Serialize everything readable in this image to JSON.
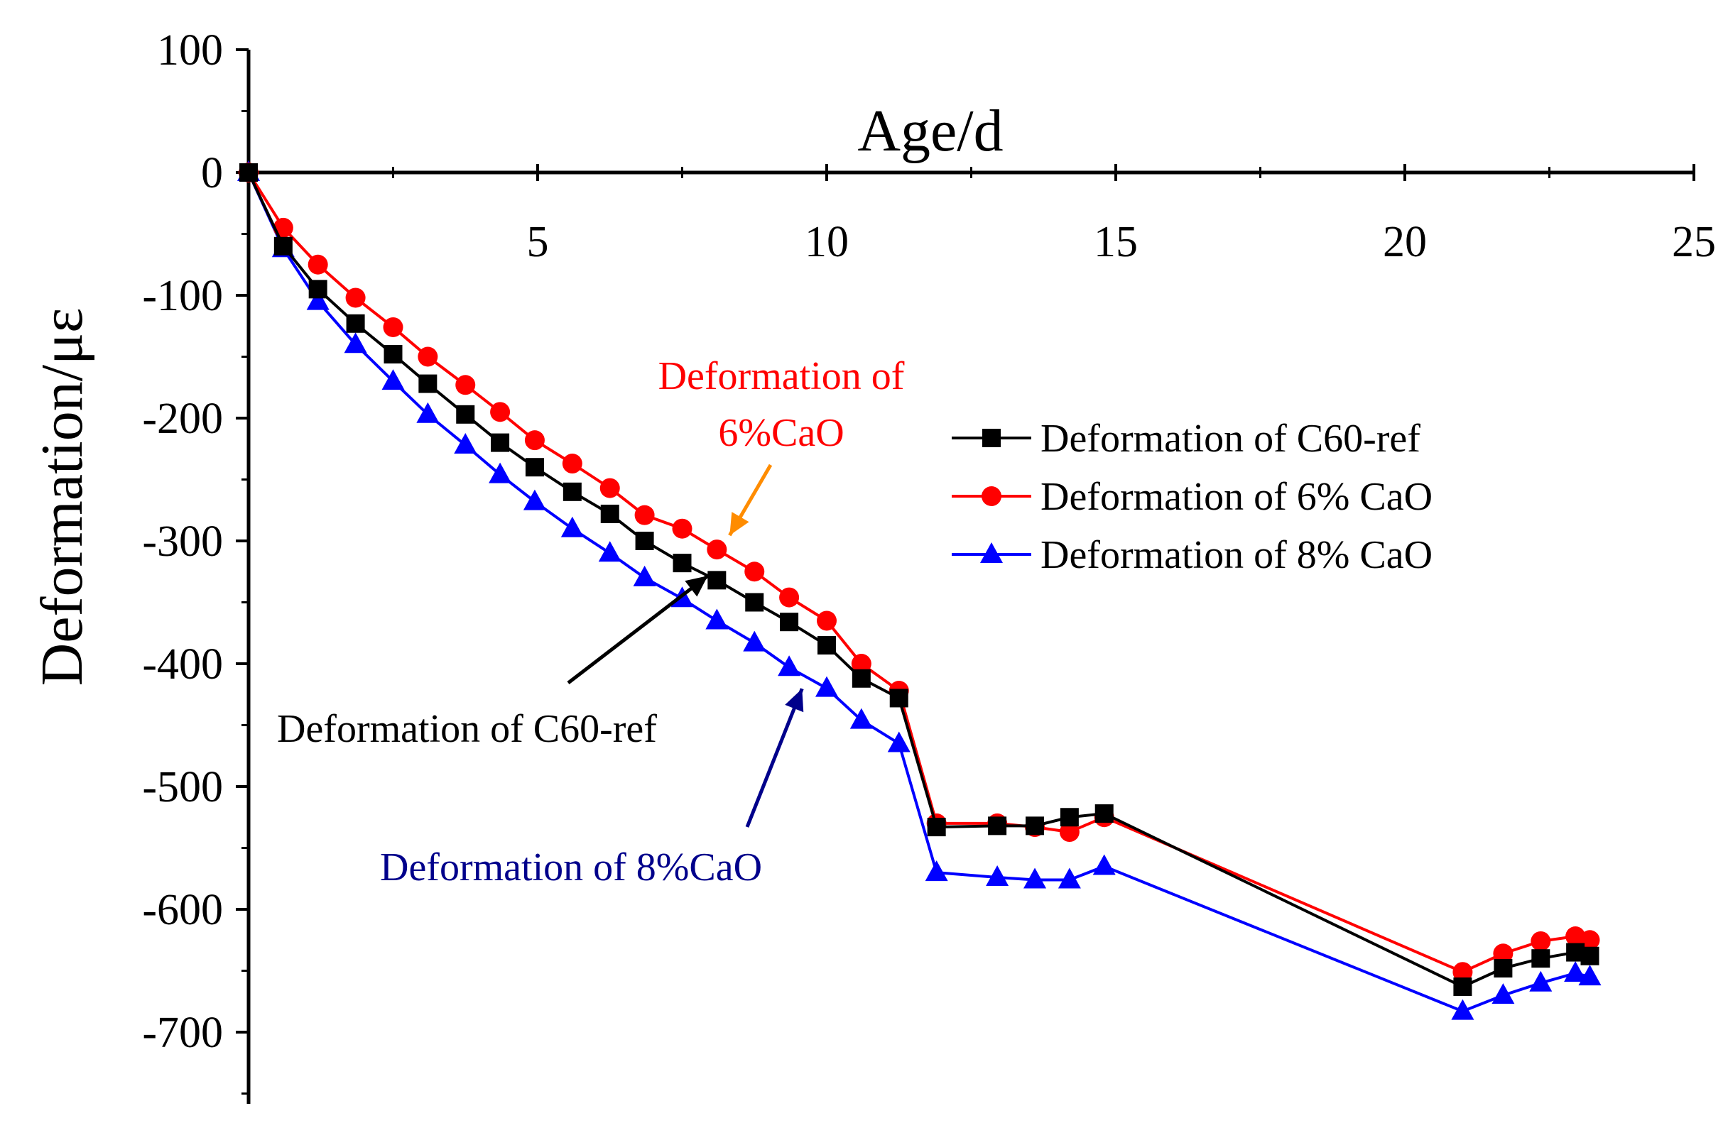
{
  "chart_data": {
    "type": "line",
    "title": "",
    "xlabel": "Age/d",
    "ylabel": "Deformation/με",
    "xlim": [
      0,
      25
    ],
    "ylim": [
      -750,
      100
    ],
    "xticks": [
      "5",
      "10",
      "15",
      "20",
      "25"
    ],
    "yticks": [
      "100",
      "0",
      "-100",
      "-200",
      "-300",
      "-400",
      "-500",
      "-600",
      "-700"
    ],
    "xtick_values": [
      5,
      10,
      15,
      20,
      25
    ],
    "ytick_values": [
      100,
      0,
      -100,
      -200,
      -300,
      -400,
      -500,
      -600,
      -700
    ],
    "legend_position": "right",
    "series": [
      {
        "name": "Deformation of C60-ref",
        "color": "#000000",
        "marker": "square",
        "x": [
          0,
          0.6,
          1.2,
          1.85,
          2.5,
          3.1,
          3.75,
          4.35,
          4.95,
          5.6,
          6.25,
          6.85,
          7.5,
          8.1,
          8.75,
          9.35,
          10.0,
          10.6,
          11.25,
          11.9,
          12.95,
          13.6,
          14.2,
          14.8,
          21.0,
          21.7,
          22.35,
          22.95,
          23.2
        ],
        "y": [
          0,
          -60,
          -95,
          -123,
          -148,
          -172,
          -197,
          -220,
          -240,
          -260,
          -278,
          -300,
          -318,
          -332,
          -350,
          -366,
          -385,
          -412,
          -428,
          -533,
          -532,
          -532,
          -525,
          -522,
          -663,
          -648,
          -640,
          -635,
          -638
        ]
      },
      {
        "name": "Deformation of 6% CaO",
        "color": "#ff0000",
        "marker": "circle",
        "x": [
          0,
          0.6,
          1.2,
          1.85,
          2.5,
          3.1,
          3.75,
          4.35,
          4.95,
          5.6,
          6.25,
          6.85,
          7.5,
          8.1,
          8.75,
          9.35,
          10.0,
          10.6,
          11.25,
          11.9,
          12.95,
          13.6,
          14.2,
          14.8,
          21.0,
          21.7,
          22.35,
          22.95,
          23.2
        ],
        "y": [
          0,
          -45,
          -75,
          -102,
          -126,
          -150,
          -173,
          -195,
          -218,
          -237,
          -257,
          -279,
          -290,
          -307,
          -325,
          -346,
          -365,
          -400,
          -422,
          -530,
          -530,
          -533,
          -537,
          -525,
          -651,
          -636,
          -626,
          -622,
          -625
        ]
      },
      {
        "name": "Deformation of 8% CaO",
        "color": "#0000ff",
        "marker": "triangle",
        "x": [
          0,
          0.6,
          1.2,
          1.85,
          2.5,
          3.1,
          3.75,
          4.35,
          4.95,
          5.6,
          6.25,
          6.85,
          7.5,
          8.1,
          8.75,
          9.35,
          10.0,
          10.6,
          11.25,
          11.9,
          12.95,
          13.6,
          14.2,
          14.8,
          21.0,
          21.7,
          22.35,
          22.95,
          23.2
        ],
        "y": [
          0,
          -62,
          -105,
          -140,
          -170,
          -197,
          -222,
          -246,
          -268,
          -290,
          -310,
          -330,
          -347,
          -365,
          -383,
          -403,
          -420,
          -446,
          -465,
          -570,
          -574,
          -576,
          -576,
          -565,
          -683,
          -670,
          -660,
          -652,
          -655
        ]
      }
    ],
    "annotations": [
      {
        "id": "ann-6",
        "lines": [
          "Deformation of",
          "6%CaO"
        ],
        "color": "#ff0000",
        "arrow_color": "#ff8c00",
        "x": 8.1,
        "y": -307
      },
      {
        "id": "ann-ref",
        "lines": [
          "Deformation of C60-ref"
        ],
        "color": "#000000",
        "arrow_color": "#000000",
        "x": 7.6,
        "y": -318
      },
      {
        "id": "ann-8",
        "lines": [
          "Deformation of 8%CaO"
        ],
        "color": "#00008b",
        "arrow_color": "#00008b",
        "x": 9.5,
        "y": -403
      }
    ]
  }
}
